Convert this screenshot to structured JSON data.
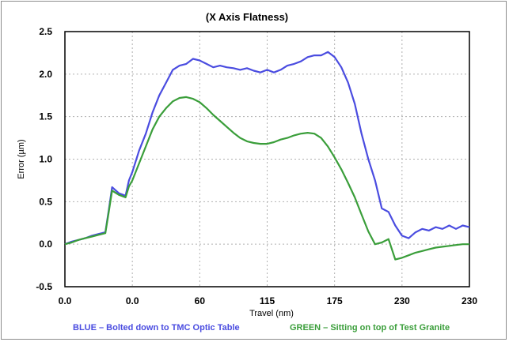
{
  "chart_data": {
    "type": "line",
    "title": "(X Axis Flatness)",
    "xlabel": "Travel (nm)",
    "ylabel": "Error (µm)",
    "x_tick_labels": [
      "0.0",
      "0.0",
      "60",
      "115",
      "175",
      "230",
      "230"
    ],
    "y_ticks": [
      -0.5,
      0.0,
      0.5,
      1.0,
      1.5,
      2.0,
      2.5
    ],
    "y_tick_labels": [
      "-0.5",
      "0.0",
      "0.5",
      "1.0",
      "1.5",
      "2.0",
      "2.5"
    ],
    "ylim": [
      -0.5,
      2.5
    ],
    "xlim": [
      0,
      6
    ],
    "grid": true,
    "legend_position": "bottom",
    "colors": {
      "blue": "#4a4ce0",
      "green": "#3a9e3a",
      "grid": "#b0b0b0",
      "frame": "#000000"
    },
    "series": [
      {
        "name": "BLUE – Bolted down to TMC Optic Table",
        "color": "#4a4ce0",
        "x": [
          0.0,
          0.1,
          0.2,
          0.3,
          0.4,
          0.5,
          0.6,
          0.65,
          0.7,
          0.8,
          0.9,
          0.95,
          1.0,
          1.1,
          1.2,
          1.3,
          1.4,
          1.5,
          1.6,
          1.7,
          1.8,
          1.9,
          2.0,
          2.1,
          2.2,
          2.3,
          2.4,
          2.5,
          2.6,
          2.7,
          2.8,
          2.9,
          3.0,
          3.1,
          3.2,
          3.3,
          3.4,
          3.5,
          3.6,
          3.7,
          3.8,
          3.9,
          4.0,
          4.1,
          4.2,
          4.3,
          4.4,
          4.5,
          4.6,
          4.7,
          4.8,
          4.9,
          5.0,
          5.1,
          5.2,
          5.3,
          5.4,
          5.5,
          5.6,
          5.7,
          5.8,
          5.9,
          6.0
        ],
        "y": [
          0.0,
          0.03,
          0.05,
          0.07,
          0.1,
          0.12,
          0.14,
          0.4,
          0.67,
          0.6,
          0.57,
          0.75,
          0.85,
          1.1,
          1.3,
          1.55,
          1.75,
          1.9,
          2.05,
          2.1,
          2.12,
          2.18,
          2.16,
          2.12,
          2.08,
          2.1,
          2.08,
          2.07,
          2.05,
          2.07,
          2.04,
          2.02,
          2.05,
          2.02,
          2.05,
          2.1,
          2.12,
          2.15,
          2.2,
          2.22,
          2.22,
          2.26,
          2.2,
          2.08,
          1.9,
          1.65,
          1.3,
          1.0,
          0.75,
          0.42,
          0.38,
          0.22,
          0.1,
          0.07,
          0.14,
          0.18,
          0.16,
          0.2,
          0.18,
          0.22,
          0.18,
          0.22,
          0.2
        ]
      },
      {
        "name": "GREEN – Sitting on top of Test Granite",
        "color": "#3a9e3a",
        "x": [
          0.0,
          0.1,
          0.2,
          0.3,
          0.4,
          0.5,
          0.6,
          0.65,
          0.7,
          0.8,
          0.9,
          0.95,
          1.0,
          1.1,
          1.2,
          1.3,
          1.4,
          1.5,
          1.6,
          1.7,
          1.8,
          1.9,
          2.0,
          2.1,
          2.2,
          2.3,
          2.4,
          2.5,
          2.6,
          2.7,
          2.8,
          2.9,
          3.0,
          3.1,
          3.2,
          3.3,
          3.4,
          3.5,
          3.6,
          3.7,
          3.8,
          3.9,
          4.0,
          4.1,
          4.2,
          4.3,
          4.4,
          4.5,
          4.6,
          4.7,
          4.8,
          4.9,
          5.0,
          5.1,
          5.2,
          5.3,
          5.4,
          5.5,
          5.6,
          5.7,
          5.8,
          5.9,
          6.0
        ],
        "y": [
          0.0,
          0.02,
          0.05,
          0.07,
          0.09,
          0.11,
          0.13,
          0.38,
          0.63,
          0.58,
          0.55,
          0.68,
          0.75,
          0.95,
          1.15,
          1.35,
          1.5,
          1.6,
          1.68,
          1.72,
          1.73,
          1.71,
          1.67,
          1.6,
          1.52,
          1.45,
          1.38,
          1.31,
          1.25,
          1.21,
          1.19,
          1.18,
          1.18,
          1.2,
          1.23,
          1.25,
          1.28,
          1.3,
          1.31,
          1.3,
          1.25,
          1.15,
          1.02,
          0.88,
          0.72,
          0.55,
          0.35,
          0.15,
          0.0,
          0.02,
          0.06,
          -0.18,
          -0.16,
          -0.13,
          -0.1,
          -0.08,
          -0.06,
          -0.04,
          -0.03,
          -0.02,
          -0.01,
          0.0,
          0.0
        ]
      }
    ]
  }
}
